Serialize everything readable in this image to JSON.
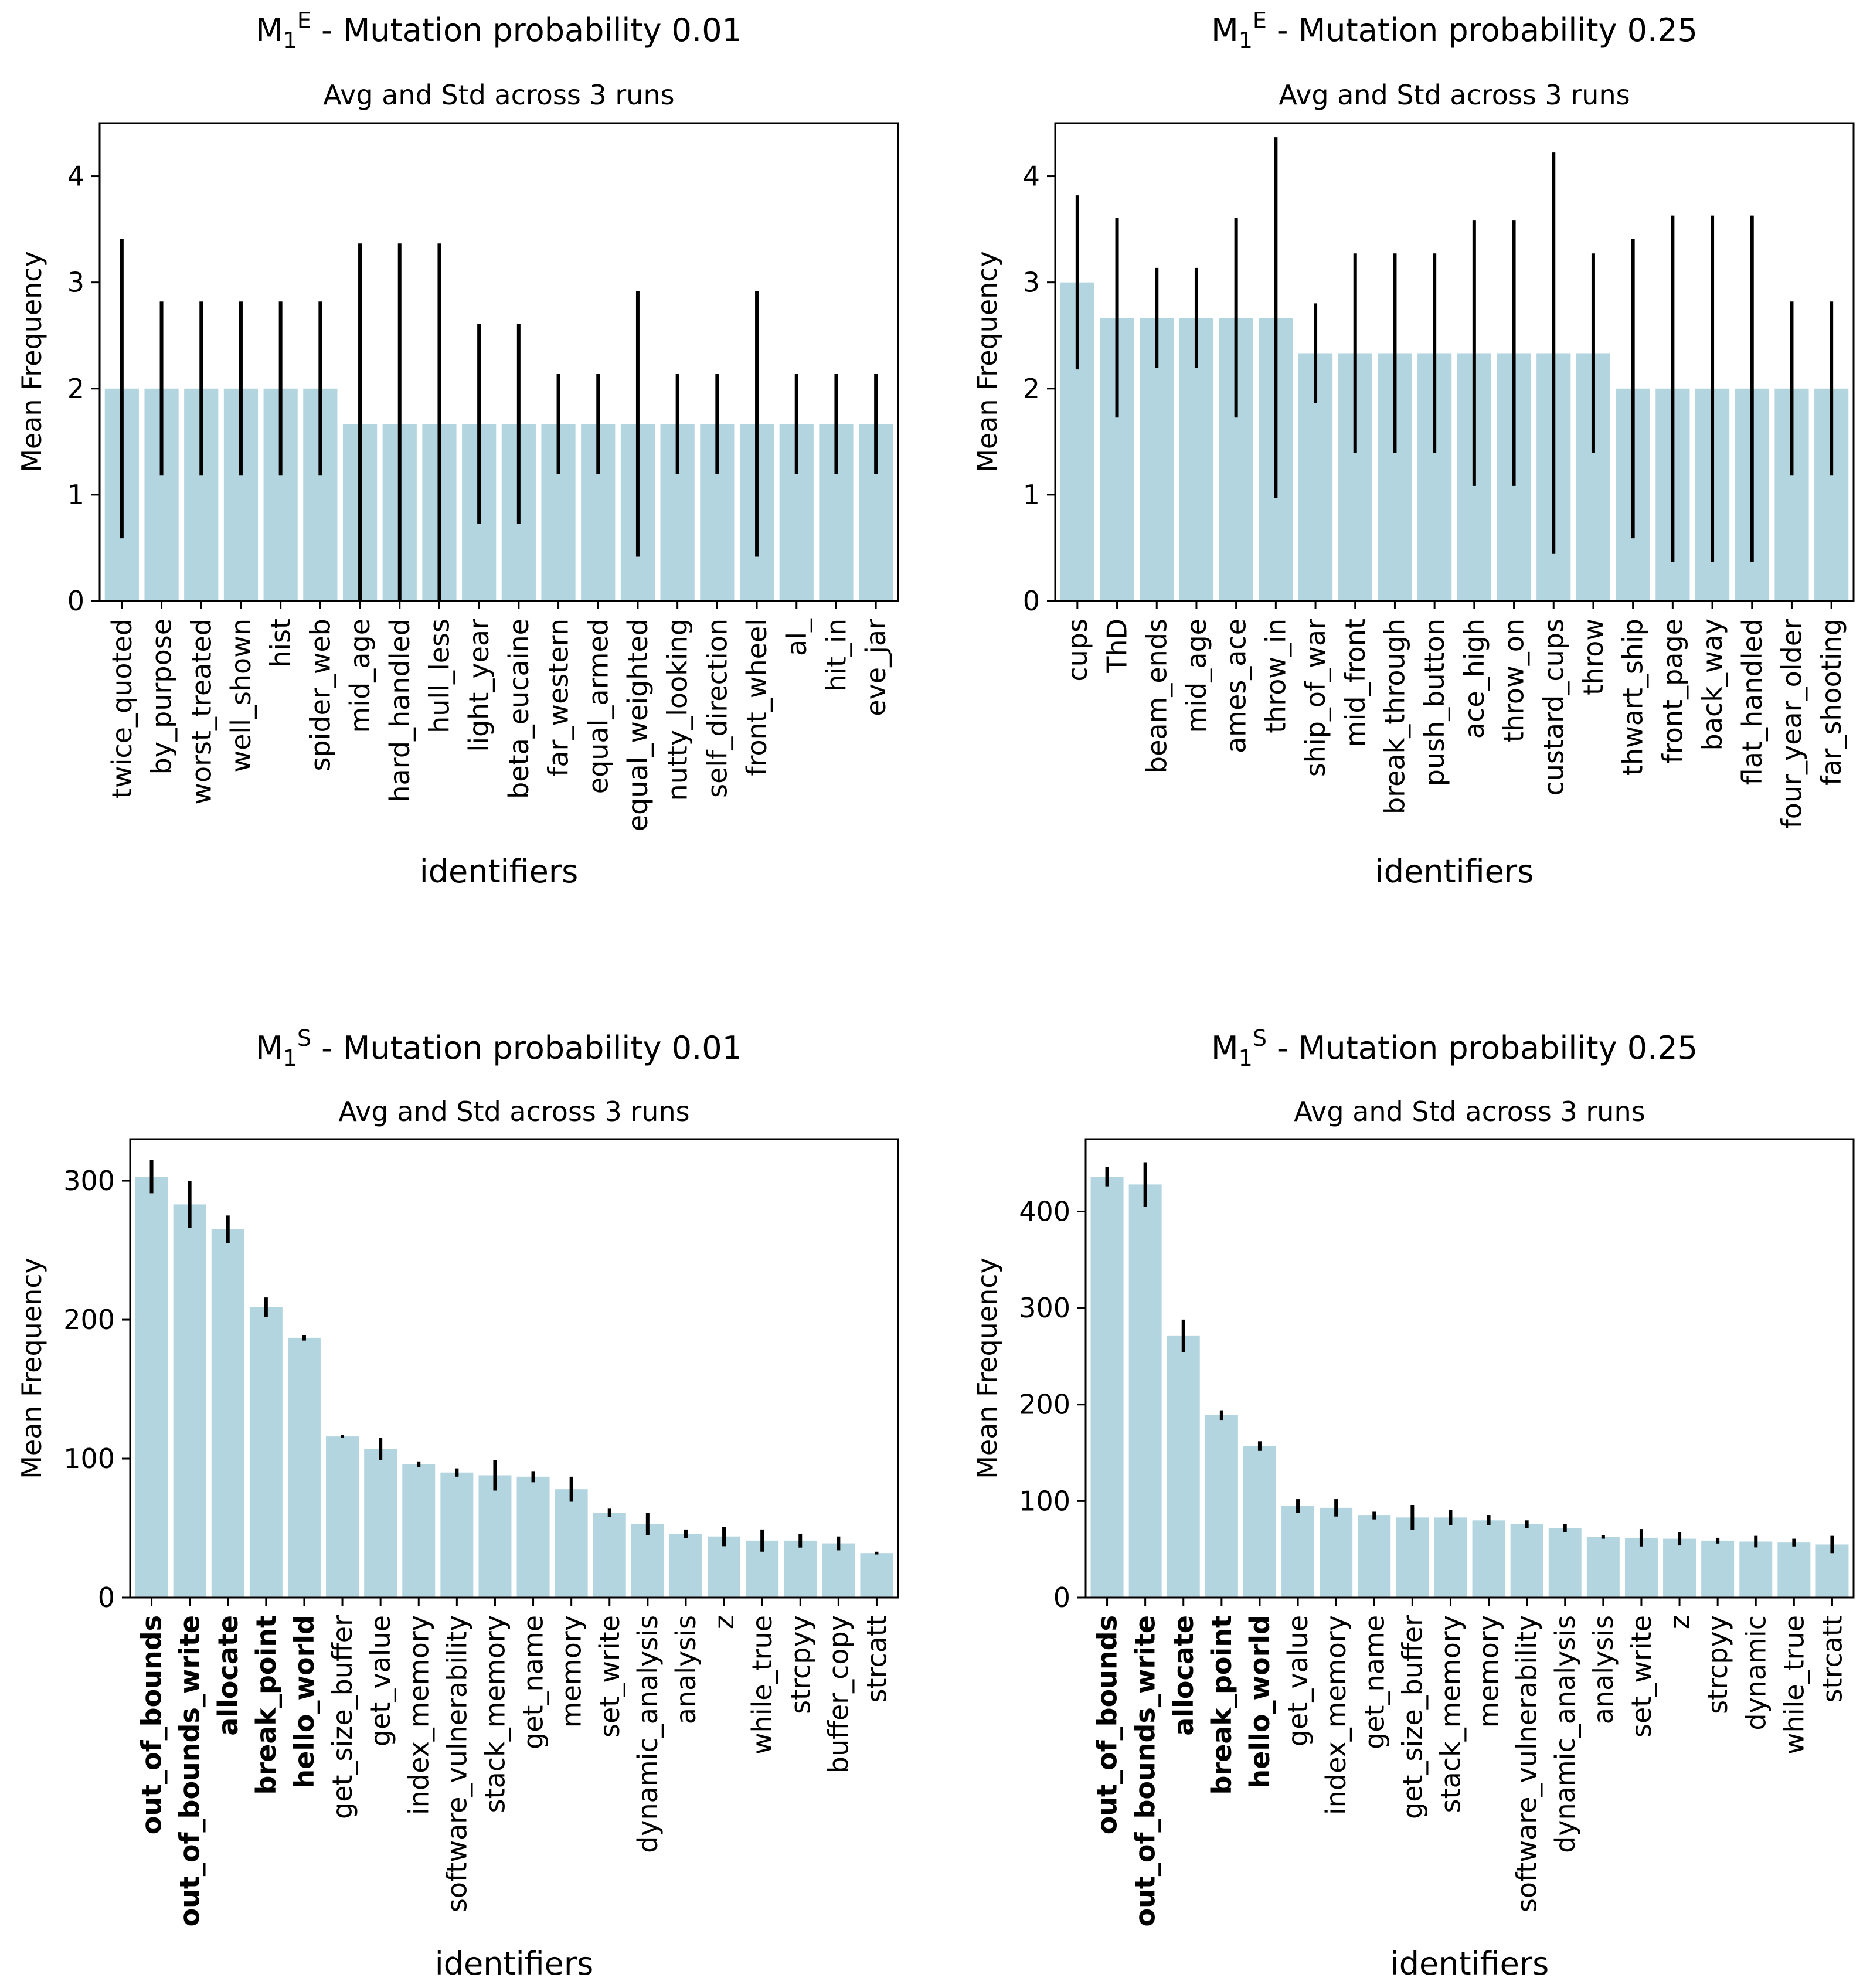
{
  "style": {
    "bar_color": "#b3d5e0",
    "err_color": "#000000",
    "frame_color": "#000000"
  },
  "chart_data": [
    {
      "type": "bar",
      "title_main": "M",
      "title_sub": "1",
      "title_sup": "E",
      "title_rest": " - Mutation probability 0.01",
      "subtitle": "Avg and Std across 3 runs",
      "xlabel": "identifiers",
      "ylabel": "Mean Frequency",
      "ylim": [
        0,
        4.5
      ],
      "yticks": [
        0,
        1,
        2,
        3,
        4
      ],
      "categories": [
        "twice_quoted",
        "by_purpose",
        "worst_treated",
        "well_shown",
        "hist",
        "spider_web",
        "mid_age",
        "hard_handled",
        "hull_less",
        "light_year",
        "beta_eucaine",
        "far_western",
        "equal_armed",
        "equal_weighted",
        "nutty_looking",
        "self_direction",
        "front_wheel",
        "al_",
        "hit_in",
        "eve_jar"
      ],
      "bold": [],
      "values": [
        2.0,
        2.0,
        2.0,
        2.0,
        2.0,
        2.0,
        1.667,
        1.667,
        1.667,
        1.667,
        1.667,
        1.667,
        1.667,
        1.667,
        1.667,
        1.667,
        1.667,
        1.667,
        1.667,
        1.667
      ],
      "std": [
        1.41,
        0.82,
        0.82,
        0.82,
        0.82,
        0.82,
        1.7,
        1.7,
        1.7,
        0.94,
        0.94,
        0.47,
        0.47,
        1.25,
        0.47,
        0.47,
        1.25,
        0.47,
        0.47,
        0.47
      ]
    },
    {
      "type": "bar",
      "title_main": "M",
      "title_sub": "1",
      "title_sup": "E",
      "title_rest": " - Mutation probability 0.25",
      "subtitle": "Avg and Std across 3 runs",
      "xlabel": "identifiers",
      "ylabel": "Mean Frequency",
      "ylim": [
        0,
        4.5
      ],
      "yticks": [
        0,
        1,
        2,
        3,
        4
      ],
      "categories": [
        "cups",
        "ThD",
        "beam_ends",
        "mid_age",
        "ames_ace",
        "throw_in",
        "ship_of_war",
        "mid_front",
        "break_through",
        "push_button",
        "ace_high",
        "throw_on",
        "custard_cups",
        "throw",
        "thwart_ship",
        "front_page",
        "back_way",
        "flat_handled",
        "four_year_older",
        "far_shooting"
      ],
      "bold": [],
      "values": [
        3.0,
        2.667,
        2.667,
        2.667,
        2.667,
        2.667,
        2.333,
        2.333,
        2.333,
        2.333,
        2.333,
        2.333,
        2.333,
        2.333,
        2.0,
        2.0,
        2.0,
        2.0,
        2.0,
        2.0
      ],
      "std": [
        0.82,
        0.94,
        0.47,
        0.47,
        0.94,
        1.7,
        0.47,
        0.94,
        0.94,
        0.94,
        1.25,
        1.25,
        1.89,
        0.94,
        1.41,
        1.63,
        1.63,
        1.63,
        0.82,
        0.82
      ]
    },
    {
      "type": "bar",
      "title_main": "M",
      "title_sub": "1",
      "title_sup": "S",
      "title_rest": " - Mutation probability 0.01",
      "subtitle": "Avg and Std across 3 runs",
      "xlabel": "identifiers",
      "ylabel": "Mean Frequency",
      "ylim": [
        0,
        330
      ],
      "yticks": [
        0,
        100,
        200,
        300
      ],
      "categories": [
        "out_of_bounds",
        "out_of_bounds_write",
        "allocate",
        "break_point",
        "hello_world",
        "get_size_buffer",
        "get_value",
        "index_memory",
        "software_vulnerability",
        "stack_memory",
        "get_name",
        "memory",
        "set_write",
        "dynamic_analysis",
        "analysis",
        "z",
        "while_true",
        "strcpyy",
        "buffer_copy",
        "strcatt"
      ],
      "bold": [
        true,
        true,
        true,
        true,
        true,
        false,
        false,
        false,
        false,
        false,
        false,
        false,
        false,
        false,
        false,
        false,
        false,
        false,
        false,
        false
      ],
      "values": [
        303,
        283,
        265,
        209,
        187,
        116,
        107,
        96,
        90,
        88,
        87,
        78,
        61,
        53,
        46,
        44,
        41,
        41,
        39,
        32
      ],
      "std": [
        12,
        17,
        10,
        7,
        2,
        1,
        8,
        2,
        3,
        11,
        4,
        9,
        3,
        8,
        3,
        7,
        8,
        5,
        5,
        1
      ]
    },
    {
      "type": "bar",
      "title_main": "M",
      "title_sub": "1",
      "title_sup": "S",
      "title_rest": " - Mutation probability 0.25",
      "subtitle": "Avg and Std across 3 runs",
      "xlabel": "identifiers",
      "ylabel": "Mean Frequency",
      "ylim": [
        0,
        475
      ],
      "yticks": [
        0,
        100,
        200,
        300,
        400
      ],
      "categories": [
        "out_of_bounds",
        "out_of_bounds_write",
        "allocate",
        "break_point",
        "hello_world",
        "get_value",
        "index_memory",
        "get_name",
        "get_size_buffer",
        "stack_memory",
        "memory",
        "software_vulnerability",
        "dynamic_analysis",
        "analysis",
        "set_write",
        "z",
        "strcpyy",
        "dynamic",
        "while_true",
        "strcatt"
      ],
      "bold": [
        true,
        true,
        true,
        true,
        true,
        false,
        false,
        false,
        false,
        false,
        false,
        false,
        false,
        false,
        false,
        false,
        false,
        false,
        false,
        false
      ],
      "values": [
        436,
        428,
        271,
        189,
        157,
        95,
        93,
        85,
        83,
        83,
        80,
        76,
        72,
        63,
        62,
        61,
        59,
        58,
        57,
        55
      ],
      "std": [
        10,
        23,
        17,
        5,
        5,
        7,
        9,
        4,
        13,
        8,
        5,
        4,
        4,
        2,
        9,
        7,
        3,
        6,
        4,
        9
      ]
    }
  ]
}
